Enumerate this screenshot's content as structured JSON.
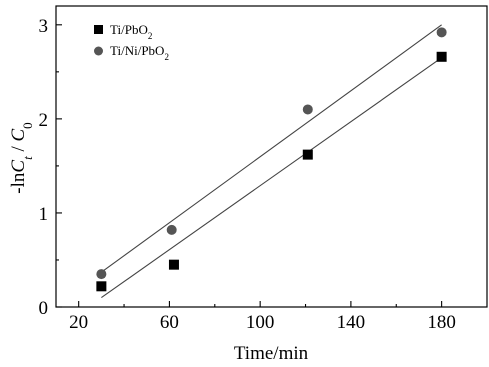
{
  "chart_data": {
    "type": "scatter",
    "xlabel": "Time/min",
    "ylabel": "-lnC_t / C_0",
    "xlim": [
      10,
      200
    ],
    "ylim": [
      0,
      3.2
    ],
    "xticks": [
      20,
      60,
      100,
      140,
      180
    ],
    "yticks": [
      0,
      1,
      2,
      3
    ],
    "grid": false,
    "legend_position": "top-left",
    "series": [
      {
        "name": "Ti/PbO2",
        "marker": "square",
        "color": "#000000",
        "x": [
          30,
          62,
          121,
          180
        ],
        "y": [
          0.22,
          0.45,
          1.62,
          2.66
        ],
        "fit": {
          "x": [
            30,
            180
          ],
          "y": [
            0.1,
            2.65
          ]
        }
      },
      {
        "name": "Ti/Ni/PbO2",
        "marker": "circle",
        "color": "#555555",
        "x": [
          30,
          61,
          121,
          180
        ],
        "y": [
          0.35,
          0.82,
          2.1,
          2.92
        ],
        "fit": {
          "x": [
            30,
            180
          ],
          "y": [
            0.37,
            3.0
          ]
        }
      }
    ]
  }
}
